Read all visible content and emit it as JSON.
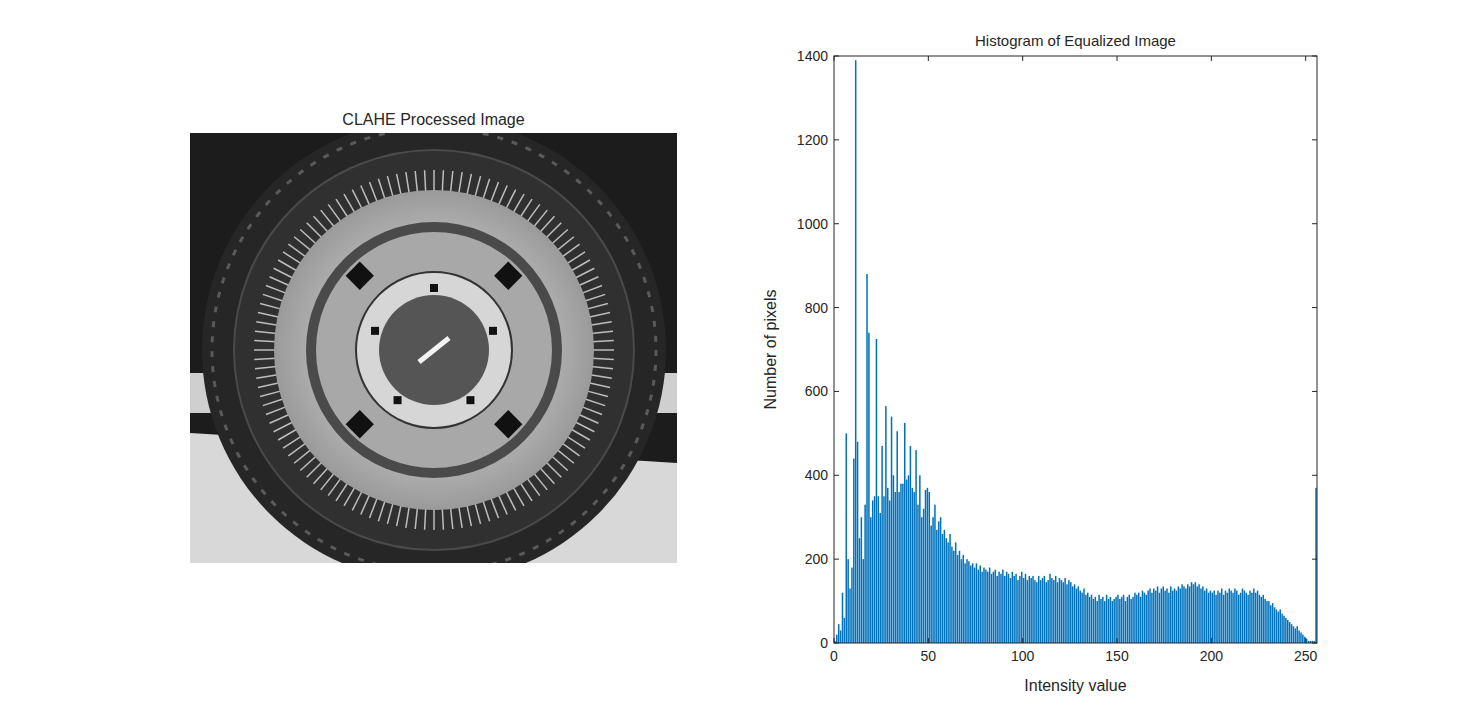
{
  "chart_data": [
    {
      "type": "image",
      "title": "CLAHE Processed Image"
    },
    {
      "type": "histogram",
      "title": "Histogram of Equalized Image",
      "x_label": "Intensity value",
      "y_label": "Number of pixels",
      "color": "#0072bd",
      "xlim": [
        0,
        256
      ],
      "xticks": [
        0,
        50,
        100,
        150,
        200,
        250
      ],
      "ylim": [
        0,
        1400
      ],
      "yticks": [
        0,
        200,
        400,
        600,
        800,
        1000,
        1200,
        1400
      ],
      "bins": [
        0,
        1,
        2,
        3,
        4,
        5,
        6,
        7,
        8,
        9,
        10,
        11,
        12,
        13,
        14,
        15,
        16,
        17,
        18,
        19,
        20,
        21,
        22,
        23,
        24,
        25,
        26,
        27,
        28,
        29,
        30,
        31,
        32,
        33,
        34,
        35,
        36,
        37,
        38,
        39,
        40,
        41,
        42,
        43,
        44,
        45,
        46,
        47,
        48,
        49,
        50,
        51,
        52,
        53,
        54,
        55,
        56,
        57,
        58,
        59,
        60,
        61,
        62,
        63,
        64,
        65,
        66,
        67,
        68,
        69,
        70,
        71,
        72,
        73,
        74,
        75,
        76,
        77,
        78,
        79,
        80,
        81,
        82,
        83,
        84,
        85,
        86,
        87,
        88,
        89,
        90,
        91,
        92,
        93,
        94,
        95,
        96,
        97,
        98,
        99,
        100,
        101,
        102,
        103,
        104,
        105,
        106,
        107,
        108,
        109,
        110,
        111,
        112,
        113,
        114,
        115,
        116,
        117,
        118,
        119,
        120,
        121,
        122,
        123,
        124,
        125,
        126,
        127,
        128,
        129,
        130,
        131,
        132,
        133,
        134,
        135,
        136,
        137,
        138,
        139,
        140,
        141,
        142,
        143,
        144,
        145,
        146,
        147,
        148,
        149,
        150,
        151,
        152,
        153,
        154,
        155,
        156,
        157,
        158,
        159,
        160,
        161,
        162,
        163,
        164,
        165,
        166,
        167,
        168,
        169,
        170,
        171,
        172,
        173,
        174,
        175,
        176,
        177,
        178,
        179,
        180,
        181,
        182,
        183,
        184,
        185,
        186,
        187,
        188,
        189,
        190,
        191,
        192,
        193,
        194,
        195,
        196,
        197,
        198,
        199,
        200,
        201,
        202,
        203,
        204,
        205,
        206,
        207,
        208,
        209,
        210,
        211,
        212,
        213,
        214,
        215,
        216,
        217,
        218,
        219,
        220,
        221,
        222,
        223,
        224,
        225,
        226,
        227,
        228,
        229,
        230,
        231,
        232,
        233,
        234,
        235,
        236,
        237,
        238,
        239,
        240,
        241,
        242,
        243,
        244,
        245,
        246,
        247,
        248,
        249,
        250,
        251,
        252,
        253,
        254,
        255,
        256
      ],
      "values": [
        5,
        20,
        45,
        30,
        120,
        60,
        500,
        200,
        130,
        180,
        440,
        1390,
        480,
        250,
        300,
        200,
        330,
        880,
        740,
        300,
        340,
        350,
        725,
        350,
        310,
        470,
        350,
        565,
        370,
        340,
        540,
        400,
        360,
        505,
        360,
        380,
        380,
        525,
        390,
        400,
        470,
        370,
        360,
        460,
        330,
        400,
        300,
        320,
        365,
        370,
        360,
        280,
        300,
        330,
        270,
        290,
        300,
        260,
        270,
        250,
        240,
        260,
        230,
        220,
        240,
        210,
        220,
        200,
        210,
        190,
        200,
        195,
        185,
        190,
        180,
        190,
        175,
        185,
        170,
        180,
        175,
        170,
        180,
        165,
        170,
        175,
        160,
        170,
        165,
        175,
        160,
        170,
        165,
        155,
        170,
        160,
        165,
        150,
        160,
        170,
        155,
        165,
        150,
        160,
        155,
        160,
        150,
        145,
        160,
        150,
        155,
        160,
        145,
        150,
        165,
        155,
        150,
        160,
        145,
        155,
        150,
        145,
        155,
        140,
        150,
        145,
        135,
        140,
        130,
        135,
        125,
        120,
        130,
        115,
        120,
        110,
        115,
        105,
        110,
        100,
        115,
        105,
        110,
        100,
        115,
        105,
        110,
        100,
        105,
        110,
        115,
        105,
        110,
        115,
        100,
        110,
        115,
        105,
        110,
        120,
        115,
        120,
        110,
        125,
        120,
        115,
        125,
        130,
        120,
        130,
        125,
        135,
        120,
        130,
        135,
        125,
        130,
        120,
        135,
        125,
        130,
        125,
        135,
        130,
        140,
        135,
        130,
        140,
        135,
        145,
        140,
        145,
        135,
        140,
        130,
        135,
        125,
        130,
        120,
        125,
        120,
        125,
        115,
        125,
        120,
        130,
        115,
        125,
        120,
        130,
        125,
        120,
        130,
        125,
        115,
        120,
        130,
        125,
        120,
        115,
        125,
        120,
        130,
        120,
        125,
        115,
        110,
        115,
        105,
        100,
        100,
        90,
        95,
        85,
        80,
        75,
        80,
        70,
        65,
        60,
        55,
        50,
        45,
        40,
        35,
        40,
        30,
        25,
        20,
        15,
        10,
        5,
        5,
        5,
        5,
        370
      ]
    }
  ]
}
